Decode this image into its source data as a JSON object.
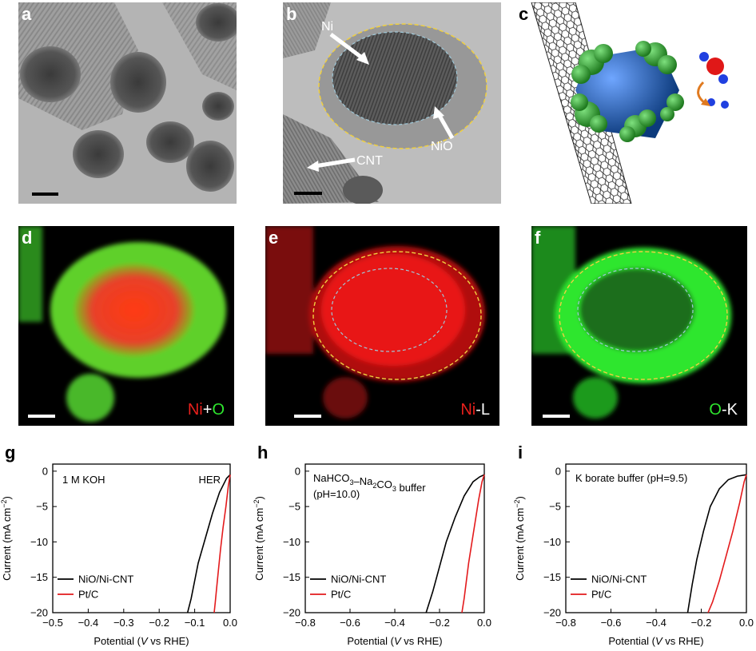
{
  "panels": {
    "a": {
      "label": "a"
    },
    "b": {
      "label": "b",
      "annotations": [
        "Ni",
        "NiO",
        "CNT"
      ]
    },
    "c": {
      "label": "c"
    },
    "d": {
      "label": "d",
      "key": {
        "a": "Ni",
        "sep": "+",
        "b": "O"
      }
    },
    "e": {
      "label": "e",
      "key": {
        "a": "Ni",
        "sep": "-",
        "b": "L"
      }
    },
    "f": {
      "label": "f",
      "key": {
        "a": "O",
        "sep": "-",
        "b": "K"
      }
    }
  },
  "colors": {
    "ni_map": "#e8201c",
    "o_map": "#2ee62e",
    "black_series": "#000000",
    "red_series": "#e31a1c",
    "ellipse_outer": "#f0d040",
    "ellipse_inner": "#9fc8d8"
  },
  "chart_data": [
    {
      "panel": "g",
      "type": "line",
      "annotations": [
        "1 M KOH",
        "HER"
      ],
      "xlabel": "Potential (V vs RHE)",
      "ylabel": "Current (mA cm−2)",
      "xlim": [
        -0.5,
        0.0
      ],
      "ylim": [
        -20,
        1
      ],
      "xticks": [
        -0.5,
        -0.4,
        -0.3,
        -0.2,
        -0.1,
        0.0
      ],
      "yticks": [
        0,
        -5,
        -10,
        -15,
        -20
      ],
      "legend_position": "bottom-left",
      "series": [
        {
          "name": "NiO/Ni-CNT",
          "color": "#000000",
          "x": [
            0.0,
            -0.01,
            -0.03,
            -0.05,
            -0.07,
            -0.09,
            -0.1,
            -0.11,
            -0.12
          ],
          "y": [
            -0.5,
            -1.0,
            -3.0,
            -6.0,
            -9.5,
            -13.0,
            -15.5,
            -18.0,
            -20.0
          ]
        },
        {
          "name": "Pt/C",
          "color": "#e31a1c",
          "x": [
            0.0,
            -0.005,
            -0.012,
            -0.02,
            -0.027,
            -0.033,
            -0.038,
            -0.042,
            -0.045
          ],
          "y": [
            -0.5,
            -2.0,
            -5.0,
            -8.0,
            -11.0,
            -14.0,
            -16.5,
            -18.5,
            -20.0
          ]
        }
      ]
    },
    {
      "panel": "h",
      "type": "line",
      "annotations": [
        "NaHCO3–Na2CO3 buffer",
        "(pH=10.0)"
      ],
      "xlabel": "Potential (V vs RHE)",
      "ylabel": "Current (mA cm−2)",
      "xlim": [
        -0.8,
        0.0
      ],
      "ylim": [
        -20,
        1
      ],
      "xticks": [
        -0.8,
        -0.6,
        -0.4,
        -0.2,
        0.0
      ],
      "yticks": [
        0,
        -5,
        -10,
        -15,
        -20
      ],
      "legend_position": "bottom-left",
      "series": [
        {
          "name": "NiO/Ni-CNT",
          "color": "#000000",
          "x": [
            0.0,
            -0.02,
            -0.05,
            -0.09,
            -0.13,
            -0.17,
            -0.2,
            -0.23,
            -0.26
          ],
          "y": [
            -0.5,
            -0.8,
            -1.5,
            -3.5,
            -6.5,
            -10.0,
            -13.5,
            -17.0,
            -20.0
          ]
        },
        {
          "name": "Pt/C",
          "color": "#e31a1c",
          "x": [
            0.0,
            -0.01,
            -0.025,
            -0.04,
            -0.055,
            -0.07,
            -0.08,
            -0.09,
            -0.1
          ],
          "y": [
            -0.5,
            -1.5,
            -4.0,
            -7.0,
            -10.0,
            -13.0,
            -15.5,
            -18.0,
            -20.0
          ]
        }
      ]
    },
    {
      "panel": "i",
      "type": "line",
      "annotations": [
        "K borate buffer (pH=9.5)"
      ],
      "xlabel": "Potential (V vs RHE)",
      "ylabel": "Current (mA cm−2)",
      "xlim": [
        -0.8,
        0.0
      ],
      "ylim": [
        -20,
        1
      ],
      "xticks": [
        -0.8,
        -0.6,
        -0.4,
        -0.2,
        0.0
      ],
      "yticks": [
        0,
        -5,
        -10,
        -15,
        -20
      ],
      "legend_position": "bottom-left",
      "series": [
        {
          "name": "NiO/Ni-CNT",
          "color": "#000000",
          "x": [
            0.0,
            -0.04,
            -0.08,
            -0.12,
            -0.16,
            -0.19,
            -0.22,
            -0.24,
            -0.26
          ],
          "y": [
            -0.5,
            -0.7,
            -1.2,
            -2.5,
            -5.0,
            -8.5,
            -12.5,
            -16.0,
            -20.0
          ]
        },
        {
          "name": "Pt/C",
          "color": "#e31a1c",
          "x": [
            0.0,
            -0.01,
            -0.03,
            -0.06,
            -0.09,
            -0.12,
            -0.15,
            -0.17
          ],
          "y": [
            -0.5,
            -1.5,
            -4.5,
            -8.5,
            -12.0,
            -15.5,
            -18.5,
            -20.0
          ]
        }
      ]
    }
  ]
}
